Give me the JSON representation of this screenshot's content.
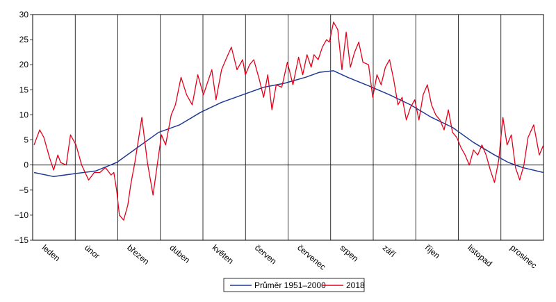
{
  "chart_data": {
    "type": "line",
    "title": "",
    "xlabel": "",
    "ylabel": "",
    "ylim": [
      -15,
      30
    ],
    "y_ticks": [
      "30",
      "25",
      "20",
      "15",
      "10",
      "5",
      "0",
      "−5",
      "−10",
      "−15"
    ],
    "months": [
      "leden",
      "únor",
      "březen",
      "duben",
      "květen",
      "červen",
      "červenec",
      "srpen",
      "září",
      "říjen",
      "listopad",
      "prosinec"
    ],
    "x_unit": "day of year",
    "grid": "vertical month separators",
    "legend_position": "bottom-center",
    "colors": {
      "avg": "#1f3a93",
      "y2018": "#e2001a"
    },
    "series": [
      {
        "name": "Průměr 1951–2000",
        "color": "#1f3a93",
        "x": [
          1,
          15,
          31,
          45,
          60,
          75,
          90,
          105,
          120,
          135,
          150,
          165,
          180,
          195,
          205,
          215,
          225,
          240,
          255,
          270,
          285,
          300,
          315,
          330,
          340,
          350,
          365
        ],
        "values": [
          -1.5,
          -2.3,
          -1.7,
          -1.2,
          0.5,
          3.5,
          6.5,
          8.0,
          10.5,
          12.5,
          14.0,
          15.5,
          16.3,
          17.5,
          18.5,
          18.8,
          17.5,
          15.8,
          14.0,
          12.0,
          9.5,
          7.5,
          4.5,
          2.0,
          0.5,
          -0.5,
          -1.5
        ]
      },
      {
        "name": "2018",
        "color": "#e2001a",
        "x": [
          1,
          5,
          8,
          12,
          15,
          18,
          20,
          24,
          27,
          31,
          35,
          40,
          44,
          48,
          52,
          56,
          58,
          60,
          62,
          65,
          68,
          70,
          73,
          75,
          78,
          82,
          86,
          88,
          92,
          95,
          99,
          102,
          106,
          110,
          114,
          118,
          122,
          125,
          128,
          131,
          135,
          138,
          142,
          146,
          150,
          152,
          155,
          158,
          162,
          165,
          168,
          171,
          174,
          178,
          182,
          186,
          190,
          193,
          196,
          199,
          201,
          204,
          207,
          210,
          212,
          215,
          218,
          221,
          224,
          227,
          230,
          233,
          236,
          240,
          243,
          246,
          249,
          252,
          255,
          258,
          261,
          264,
          267,
          270,
          273,
          276,
          279,
          282,
          285,
          288,
          291,
          294,
          297,
          300,
          303,
          306,
          309,
          312,
          315,
          318,
          321,
          324,
          327,
          330,
          333,
          336,
          339,
          342,
          345,
          348,
          351,
          354,
          358,
          362,
          365
        ],
        "values": [
          4.0,
          7.0,
          5.5,
          1.5,
          -1.0,
          2.0,
          0.5,
          0.0,
          6.0,
          4.0,
          0.0,
          -3.0,
          -1.5,
          -1.5,
          -0.5,
          -2.0,
          -1.5,
          -5.0,
          -10.0,
          -11.0,
          -8.0,
          -4.0,
          0.5,
          4.0,
          9.5,
          0.5,
          -6.0,
          -2.0,
          6.0,
          4.0,
          10.0,
          12.0,
          17.5,
          14.0,
          12.0,
          18.0,
          14.0,
          16.5,
          19.0,
          13.0,
          19.0,
          21.0,
          23.5,
          19.0,
          21.0,
          18.0,
          20.0,
          21.0,
          17.0,
          13.5,
          18.0,
          11.0,
          16.0,
          15.5,
          20.5,
          16.0,
          21.5,
          18.0,
          22.0,
          19.5,
          22.0,
          21.0,
          23.5,
          25.0,
          24.5,
          28.5,
          27.0,
          19.0,
          26.5,
          19.5,
          22.5,
          24.5,
          20.5,
          20.0,
          13.5,
          18.0,
          16.0,
          19.5,
          21.0,
          17.0,
          12.0,
          13.5,
          9.0,
          11.5,
          13.0,
          9.0,
          14.0,
          16.0,
          12.0,
          10.0,
          9.0,
          7.0,
          11.0,
          6.5,
          5.5,
          3.5,
          2.0,
          0.0,
          3.0,
          2.0,
          4.0,
          2.0,
          -1.0,
          -3.5,
          1.0,
          9.5,
          4.0,
          6.0,
          -0.5,
          -3.0,
          0.0,
          5.5,
          8.0,
          2.0,
          4.0
        ]
      }
    ]
  }
}
